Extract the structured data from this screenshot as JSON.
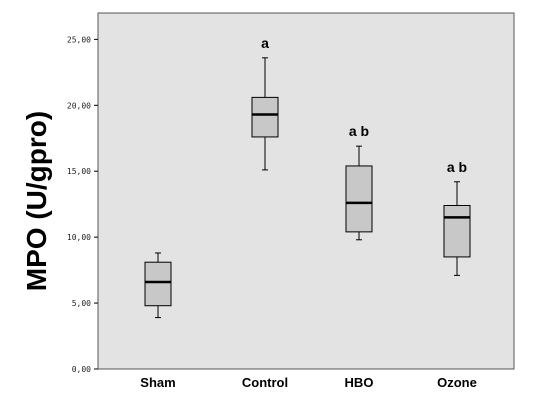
{
  "chart_data": {
    "type": "boxplot",
    "ylabel": "MPO (U/gpro)",
    "xlabel": "",
    "ylim": [
      0,
      27
    ],
    "yticks": [
      "0,00",
      "5,00",
      "10,00",
      "15,00",
      "20,00",
      "25,00"
    ],
    "ytick_values": [
      0,
      5,
      10,
      15,
      20,
      25
    ],
    "grid": false,
    "categories": [
      "Sham",
      "Control",
      "HBO",
      "Ozone"
    ],
    "boxes": [
      {
        "min": 3.9,
        "q1": 4.8,
        "median": 6.6,
        "q3": 8.1,
        "max": 8.8,
        "annotation": ""
      },
      {
        "min": 15.1,
        "q1": 17.6,
        "median": 19.3,
        "q3": 20.6,
        "max": 23.6,
        "annotation": "a"
      },
      {
        "min": 9.8,
        "q1": 10.4,
        "median": 12.6,
        "q3": 15.4,
        "max": 16.9,
        "annotation": "a  b"
      },
      {
        "min": 7.1,
        "q1": 8.5,
        "median": 11.5,
        "q3": 12.4,
        "max": 14.2,
        "annotation": "a  b"
      }
    ],
    "colors": {
      "plot_background": "#e3e3e3",
      "box_fill": "#c8c8c8",
      "line": "#000000"
    }
  }
}
